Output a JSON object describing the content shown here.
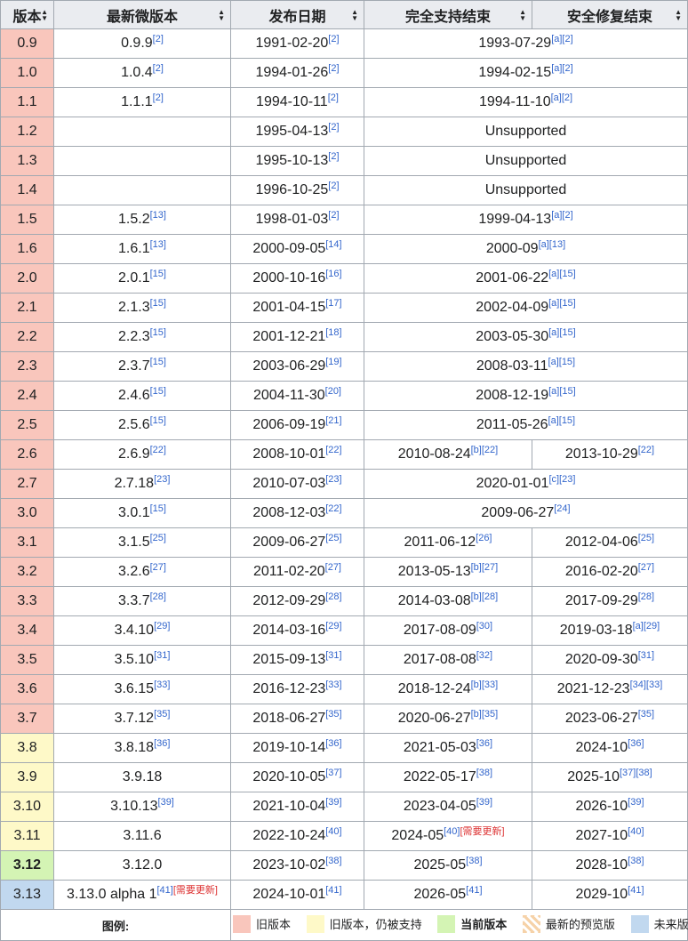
{
  "headers": [
    "版本",
    "最新微版本",
    "发布日期",
    "完全支持结束",
    "安全修复结束"
  ],
  "rows": [
    {
      "version": "0.9",
      "latest": "0.9.9",
      "latest_refs": "[2]",
      "release": "1991-02-20",
      "release_refs": "[2]",
      "full": "1993-07-29",
      "full_refs": "[a][2]",
      "merged": true,
      "status": "old"
    },
    {
      "version": "1.0",
      "latest": "1.0.4",
      "latest_refs": "[2]",
      "release": "1994-01-26",
      "release_refs": "[2]",
      "full": "1994-02-15",
      "full_refs": "[a][2]",
      "merged": true,
      "status": "old"
    },
    {
      "version": "1.1",
      "latest": "1.1.1",
      "latest_refs": "[2]",
      "release": "1994-10-11",
      "release_refs": "[2]",
      "full": "1994-11-10",
      "full_refs": "[a][2]",
      "merged": true,
      "status": "old"
    },
    {
      "version": "1.2",
      "latest": "",
      "latest_refs": "",
      "release": "1995-04-13",
      "release_refs": "[2]",
      "full": "Unsupported",
      "full_refs": "",
      "merged": true,
      "status": "old"
    },
    {
      "version": "1.3",
      "latest": "",
      "latest_refs": "",
      "release": "1995-10-13",
      "release_refs": "[2]",
      "full": "Unsupported",
      "full_refs": "",
      "merged": true,
      "status": "old"
    },
    {
      "version": "1.4",
      "latest": "",
      "latest_refs": "",
      "release": "1996-10-25",
      "release_refs": "[2]",
      "full": "Unsupported",
      "full_refs": "",
      "merged": true,
      "status": "old"
    },
    {
      "version": "1.5",
      "latest": "1.5.2",
      "latest_refs": "[13]",
      "release": "1998-01-03",
      "release_refs": "[2]",
      "full": "1999-04-13",
      "full_refs": "[a][2]",
      "merged": true,
      "status": "old"
    },
    {
      "version": "1.6",
      "latest": "1.6.1",
      "latest_refs": "[13]",
      "release": "2000-09-05",
      "release_refs": "[14]",
      "full": "2000-09",
      "full_refs": "[a][13]",
      "merged": true,
      "status": "old"
    },
    {
      "version": "2.0",
      "latest": "2.0.1",
      "latest_refs": "[15]",
      "release": "2000-10-16",
      "release_refs": "[16]",
      "full": "2001-06-22",
      "full_refs": "[a][15]",
      "merged": true,
      "status": "old"
    },
    {
      "version": "2.1",
      "latest": "2.1.3",
      "latest_refs": "[15]",
      "release": "2001-04-15",
      "release_refs": "[17]",
      "full": "2002-04-09",
      "full_refs": "[a][15]",
      "merged": true,
      "status": "old"
    },
    {
      "version": "2.2",
      "latest": "2.2.3",
      "latest_refs": "[15]",
      "release": "2001-12-21",
      "release_refs": "[18]",
      "full": "2003-05-30",
      "full_refs": "[a][15]",
      "merged": true,
      "status": "old"
    },
    {
      "version": "2.3",
      "latest": "2.3.7",
      "latest_refs": "[15]",
      "release": "2003-06-29",
      "release_refs": "[19]",
      "full": "2008-03-11",
      "full_refs": "[a][15]",
      "merged": true,
      "status": "old"
    },
    {
      "version": "2.4",
      "latest": "2.4.6",
      "latest_refs": "[15]",
      "release": "2004-11-30",
      "release_refs": "[20]",
      "full": "2008-12-19",
      "full_refs": "[a][15]",
      "merged": true,
      "status": "old"
    },
    {
      "version": "2.5",
      "latest": "2.5.6",
      "latest_refs": "[15]",
      "release": "2006-09-19",
      "release_refs": "[21]",
      "full": "2011-05-26",
      "full_refs": "[a][15]",
      "merged": true,
      "status": "old"
    },
    {
      "version": "2.6",
      "latest": "2.6.9",
      "latest_refs": "[22]",
      "release": "2008-10-01",
      "release_refs": "[22]",
      "full": "2010-08-24",
      "full_refs": "[b][22]",
      "security": "2013-10-29",
      "security_refs": "[22]",
      "merged": false,
      "status": "old"
    },
    {
      "version": "2.7",
      "latest": "2.7.18",
      "latest_refs": "[23]",
      "release": "2010-07-03",
      "release_refs": "[23]",
      "full": "2020-01-01",
      "full_refs": "[c][23]",
      "merged": true,
      "status": "old"
    },
    {
      "version": "3.0",
      "latest": "3.0.1",
      "latest_refs": "[15]",
      "release": "2008-12-03",
      "release_refs": "[22]",
      "full": "2009-06-27",
      "full_refs": "[24]",
      "merged": true,
      "status": "old"
    },
    {
      "version": "3.1",
      "latest": "3.1.5",
      "latest_refs": "[25]",
      "release": "2009-06-27",
      "release_refs": "[25]",
      "full": "2011-06-12",
      "full_refs": "[26]",
      "security": "2012-04-06",
      "security_refs": "[25]",
      "merged": false,
      "status": "old"
    },
    {
      "version": "3.2",
      "latest": "3.2.6",
      "latest_refs": "[27]",
      "release": "2011-02-20",
      "release_refs": "[27]",
      "full": "2013-05-13",
      "full_refs": "[b][27]",
      "security": "2016-02-20",
      "security_refs": "[27]",
      "merged": false,
      "status": "old"
    },
    {
      "version": "3.3",
      "latest": "3.3.7",
      "latest_refs": "[28]",
      "release": "2012-09-29",
      "release_refs": "[28]",
      "full": "2014-03-08",
      "full_refs": "[b][28]",
      "security": "2017-09-29",
      "security_refs": "[28]",
      "merged": false,
      "status": "old"
    },
    {
      "version": "3.4",
      "latest": "3.4.10",
      "latest_refs": "[29]",
      "release": "2014-03-16",
      "release_refs": "[29]",
      "full": "2017-08-09",
      "full_refs": "[30]",
      "security": "2019-03-18",
      "security_refs": "[a][29]",
      "merged": false,
      "status": "old"
    },
    {
      "version": "3.5",
      "latest": "3.5.10",
      "latest_refs": "[31]",
      "release": "2015-09-13",
      "release_refs": "[31]",
      "full": "2017-08-08",
      "full_refs": "[32]",
      "security": "2020-09-30",
      "security_refs": "[31]",
      "merged": false,
      "status": "old"
    },
    {
      "version": "3.6",
      "latest": "3.6.15",
      "latest_refs": "[33]",
      "release": "2016-12-23",
      "release_refs": "[33]",
      "full": "2018-12-24",
      "full_refs": "[b][33]",
      "security": "2021-12-23",
      "security_refs": "[34][33]",
      "merged": false,
      "status": "old"
    },
    {
      "version": "3.7",
      "latest": "3.7.12",
      "latest_refs": "[35]",
      "release": "2018-06-27",
      "release_refs": "[35]",
      "full": "2020-06-27",
      "full_refs": "[b][35]",
      "security": "2023-06-27",
      "security_refs": "[35]",
      "merged": false,
      "status": "old"
    },
    {
      "version": "3.8",
      "latest": "3.8.18",
      "latest_refs": "[36]",
      "release": "2019-10-14",
      "release_refs": "[36]",
      "full": "2021-05-03",
      "full_refs": "[36]",
      "security": "2024-10",
      "security_refs": "[36]",
      "merged": false,
      "status": "olds"
    },
    {
      "version": "3.9",
      "latest": "3.9.18",
      "latest_refs": "",
      "release": "2020-10-05",
      "release_refs": "[37]",
      "full": "2022-05-17",
      "full_refs": "[38]",
      "security": "2025-10",
      "security_refs": "[37][38]",
      "merged": false,
      "status": "olds"
    },
    {
      "version": "3.10",
      "latest": "3.10.13",
      "latest_refs": "[39]",
      "release": "2021-10-04",
      "release_refs": "[39]",
      "full": "2023-04-05",
      "full_refs": "[39]",
      "security": "2026-10",
      "security_refs": "[39]",
      "merged": false,
      "status": "olds"
    },
    {
      "version": "3.11",
      "latest": "3.11.6",
      "latest_refs": "",
      "release": "2022-10-24",
      "release_refs": "[40]",
      "full": "2024-05",
      "full_refs": "[40]",
      "full_update": "[需要更新]",
      "security": "2027-10",
      "security_refs": "[40]",
      "merged": false,
      "status": "olds"
    },
    {
      "version": "3.12",
      "latest": "3.12.0",
      "latest_refs": "",
      "release": "2023-10-02",
      "release_refs": "[38]",
      "full": "2025-05",
      "full_refs": "[38]",
      "security": "2028-10",
      "security_refs": "[38]",
      "merged": false,
      "status": "cur"
    },
    {
      "version": "3.13",
      "latest": "3.13.0 alpha 1",
      "latest_refs": "[41]",
      "latest_update": "[需要更新]",
      "release": "2024-10-01",
      "release_refs": "[41]",
      "full": "2026-05",
      "full_refs": "[41]",
      "security": "2029-10",
      "security_refs": "[41]",
      "merged": false,
      "status": "fut"
    }
  ],
  "legend": {
    "label": "图例:",
    "items": [
      {
        "key": "old",
        "text": "旧版本"
      },
      {
        "key": "olds",
        "text": "旧版本，仍被支持"
      },
      {
        "key": "cur",
        "text": "当前版本"
      },
      {
        "key": "pre",
        "text": "最新的预览版"
      },
      {
        "key": "fut",
        "text": "未来版本"
      }
    ]
  },
  "colors": {
    "old": "#f9c6bc",
    "old_supported": "#fef9c8",
    "current": "#d4f4b4",
    "future": "#c1d8ef",
    "header": "#eaecf0",
    "border": "#a2a9b1",
    "link": "#3366cc",
    "update_tag": "#d33"
  }
}
